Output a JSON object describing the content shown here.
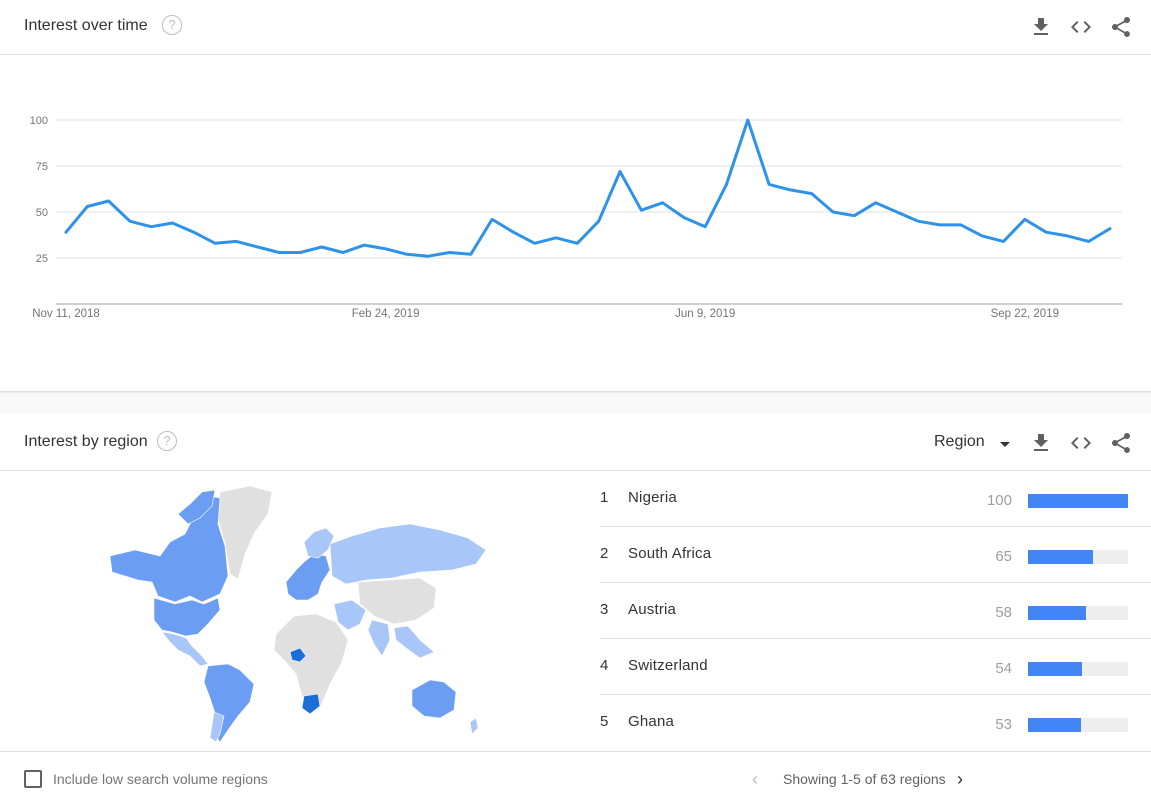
{
  "time_card": {
    "title": "Interest over time",
    "help_icon": "help-circle-icon",
    "actions": [
      "download-icon",
      "embed-icon",
      "share-icon"
    ]
  },
  "chart_data": {
    "type": "line",
    "title": "",
    "xlabel": "",
    "ylabel": "",
    "ylim": [
      0,
      100
    ],
    "y_ticks": [
      "25",
      "50",
      "75",
      "100"
    ],
    "x_tick_labels": [
      "Nov 11, 2018",
      "Feb 24, 2019",
      "Jun 9, 2019",
      "Sep 22, 2019"
    ],
    "x_tick_indices": [
      0,
      15,
      30,
      45
    ],
    "grid": true,
    "line_color": "#2e93e8",
    "series": [
      {
        "values": [
          39,
          53,
          56,
          45,
          42,
          44,
          39,
          33,
          34,
          31,
          28,
          28,
          31,
          28,
          32,
          30,
          27,
          26,
          28,
          27,
          46,
          39,
          33,
          36,
          33,
          45,
          72,
          51,
          55,
          47,
          42,
          65,
          100,
          65,
          62,
          60,
          50,
          48,
          55,
          50,
          45,
          43,
          43,
          37,
          34,
          46,
          39,
          37,
          34,
          41
        ]
      }
    ]
  },
  "region_card": {
    "title": "Interest by region",
    "help_icon": "help-circle-icon",
    "region_selector": "Region",
    "actions": [
      "download-icon",
      "embed-icon",
      "share-icon"
    ],
    "map_colors": {
      "high": "#1a6ed8",
      "mid": "#6b9ef3",
      "low": "#a8c7f8",
      "none": "#e0e0e0"
    },
    "rankings": [
      {
        "rank": "1",
        "name": "Nigeria",
        "value": 100
      },
      {
        "rank": "2",
        "name": "South Africa",
        "value": 65
      },
      {
        "rank": "3",
        "name": "Austria",
        "value": 58
      },
      {
        "rank": "4",
        "name": "Switzerland",
        "value": 54
      },
      {
        "rank": "5",
        "name": "Ghana",
        "value": 53
      }
    ],
    "bar_color": "#4285f4",
    "footer": {
      "checkbox_label": "Include low search volume regions",
      "pager_text": "Showing 1-5 of 63 regions",
      "prev_icon": "chevron-left-icon",
      "next_icon": "chevron-right-icon"
    }
  }
}
